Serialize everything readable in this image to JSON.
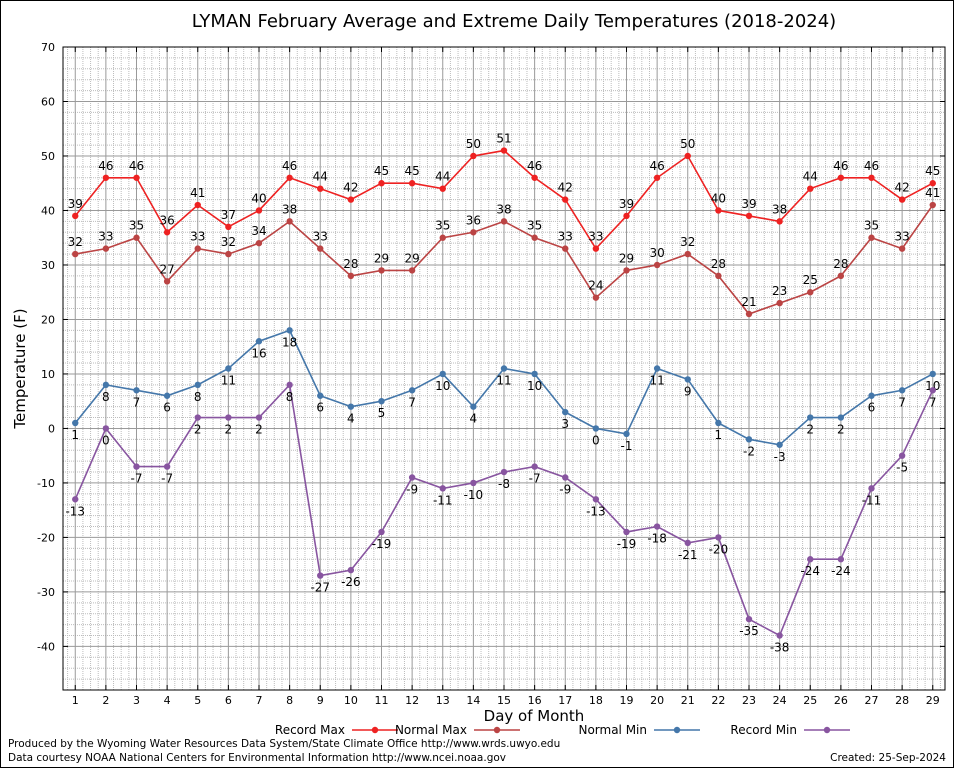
{
  "chart_data": {
    "type": "line",
    "title": "LYMAN February Average and Extreme Daily Temperatures (2018-2024)",
    "xlabel": "Day of Month",
    "ylabel": "Temperature (F)",
    "x": [
      1,
      2,
      3,
      4,
      5,
      6,
      7,
      8,
      9,
      10,
      11,
      12,
      13,
      14,
      15,
      16,
      17,
      18,
      19,
      20,
      21,
      22,
      23,
      24,
      25,
      26,
      27,
      28,
      29
    ],
    "xlim": [
      0.6,
      29.4
    ],
    "ylim": [
      -48,
      70
    ],
    "yticks": [
      70,
      60,
      50,
      40,
      30,
      20,
      10,
      0,
      -10,
      -20,
      -30,
      -40
    ],
    "grid": true,
    "legend_placement": "bottom",
    "series": [
      {
        "name": "Record Max",
        "color": "#ee2222",
        "values": [
          39,
          46,
          46,
          36,
          41,
          37,
          40,
          46,
          44,
          42,
          45,
          45,
          44,
          50,
          51,
          46,
          42,
          33,
          39,
          46,
          50,
          40,
          39,
          38,
          44,
          46,
          46,
          42,
          45
        ]
      },
      {
        "name": "Normal Max",
        "color": "#bb4444",
        "values": [
          32,
          33,
          35,
          27,
          33,
          32,
          34,
          38,
          33,
          28,
          29,
          29,
          35,
          36,
          38,
          35,
          33,
          24,
          29,
          30,
          32,
          28,
          21,
          23,
          25,
          28,
          35,
          33,
          41
        ]
      },
      {
        "name": "Normal Min",
        "color": "#4477aa",
        "values": [
          1,
          8,
          7,
          6,
          8,
          11,
          16,
          18,
          6,
          4,
          5,
          7,
          10,
          4,
          11,
          10,
          3,
          0,
          -1,
          11,
          9,
          1,
          -2,
          -3,
          2,
          2,
          6,
          7,
          10
        ]
      },
      {
        "name": "Record Min",
        "color": "#8855a0",
        "values": [
          -13,
          0,
          -7,
          -7,
          2,
          2,
          2,
          8,
          -27,
          -26,
          -19,
          -9,
          -11,
          -10,
          -8,
          -7,
          -9,
          -13,
          -19,
          -18,
          -21,
          -20,
          -35,
          -38,
          -24,
          -24,
          -11,
          -5,
          7
        ]
      }
    ]
  },
  "credits": {
    "line1": "Produced by the Wyoming Water Resources Data System/State Climate Office http://www.wrds.uwyo.edu",
    "line2": "Data courtesy NOAA National Centers for Environmental Information http://www.ncei.noaa.gov",
    "created": "Created:  25-Sep-2024"
  }
}
